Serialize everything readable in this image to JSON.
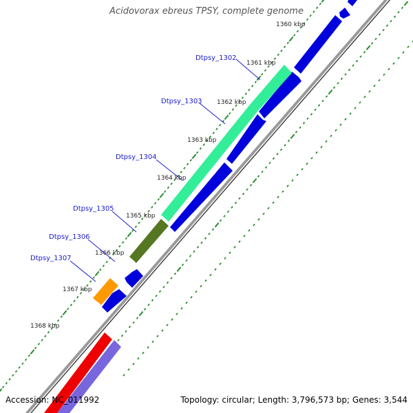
{
  "title": "Acidovorax ebreus TPSY, complete genome",
  "footer": {
    "accession": "Accession: NC_011992",
    "summary": "Topology: circular; Length: 3,796,573 bp; Genes: 3,544"
  },
  "colors": {
    "forward_cds": "#0000dd",
    "highlight_gene": "#33ee99",
    "olive_gene": "#557722",
    "orange_gene": "#ff9900",
    "red_gene": "#ee0000",
    "violet_gene": "#7766dd",
    "backbone": "#888888",
    "tick_dots": "#2a8a2a",
    "label_blue": "#1a1acc"
  },
  "scale_ticks": [
    {
      "label": "1360 kbp",
      "kbp": 1360
    },
    {
      "label": "1361 kbp",
      "kbp": 1361
    },
    {
      "label": "1362 kbp",
      "kbp": 1362
    },
    {
      "label": "1363 kbp",
      "kbp": 1363
    },
    {
      "label": "1364 kbp",
      "kbp": 1364
    },
    {
      "label": "1365 kbp",
      "kbp": 1365
    },
    {
      "label": "1366 kbp",
      "kbp": 1366
    },
    {
      "label": "1367 kbp",
      "kbp": 1367
    },
    {
      "label": "1368 kbp",
      "kbp": 1368
    }
  ],
  "gene_labels": [
    {
      "name": "Dtpsy_1302"
    },
    {
      "name": "Dtpsy_1303"
    },
    {
      "name": "Dtpsy_1304"
    },
    {
      "name": "Dtpsy_1305"
    },
    {
      "name": "Dtpsy_1306"
    },
    {
      "name": "Dtpsy_1307"
    }
  ]
}
